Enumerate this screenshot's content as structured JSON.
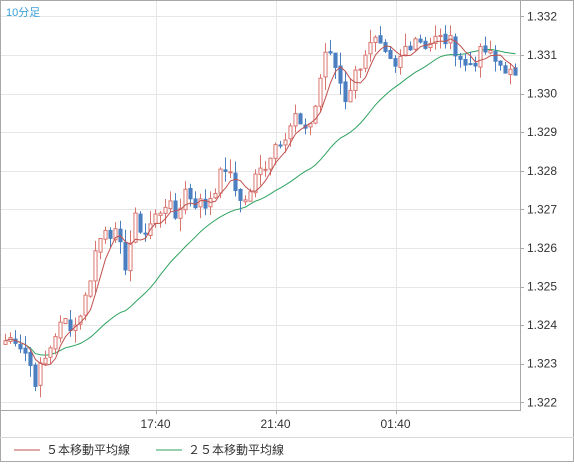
{
  "timeframe_label": "10分足",
  "legend": [
    {
      "label": "５本移動平均線",
      "color": "#c0504d"
    },
    {
      "label": "２５本移動平均線",
      "color": "#2ca25f"
    }
  ],
  "colors": {
    "up_candle": "#d9756e",
    "down_candle": "#4a7fc1",
    "ma5": "#c0504d",
    "ma25": "#2ca25f",
    "grid": "#e6e6e6",
    "frame": "#a8a8a8",
    "timeframe_text": "#3aa0d8"
  },
  "chart_data": {
    "type": "candlestick",
    "title": "",
    "xlabel": "",
    "ylabel": "",
    "ylim": [
      1.3218,
      1.3324
    ],
    "y_ticks": [
      "1.332",
      "1.331",
      "1.330",
      "1.329",
      "1.328",
      "1.327",
      "1.326",
      "1.325",
      "1.324",
      "1.323",
      "1.322"
    ],
    "y_tick_values": [
      1.332,
      1.331,
      1.33,
      1.329,
      1.328,
      1.327,
      1.326,
      1.325,
      1.324,
      1.323,
      1.322
    ],
    "x_ticks": [
      {
        "label": "17:40",
        "bar_index": 30
      },
      {
        "label": "21:40",
        "bar_index": 54
      },
      {
        "label": "01:40",
        "bar_index": 78
      }
    ],
    "bar_count": 103,
    "start_anchor": [
      1.3235,
      1.3235
    ],
    "anchors": [
      [
        0,
        1.3236
      ],
      [
        2,
        1.3237
      ],
      [
        4,
        1.3233
      ],
      [
        6,
        1.3226
      ],
      [
        8,
        1.3231
      ],
      [
        10,
        1.3238
      ],
      [
        12,
        1.3241
      ],
      [
        14,
        1.324
      ],
      [
        16,
        1.3247
      ],
      [
        18,
        1.3259
      ],
      [
        20,
        1.3266
      ],
      [
        22,
        1.3263
      ],
      [
        24,
        1.3256
      ],
      [
        26,
        1.3267
      ],
      [
        28,
        1.3264
      ],
      [
        30,
        1.3268
      ],
      [
        32,
        1.3272
      ],
      [
        34,
        1.3268
      ],
      [
        36,
        1.3275
      ],
      [
        38,
        1.3272
      ],
      [
        40,
        1.3271
      ],
      [
        42,
        1.3276
      ],
      [
        44,
        1.3281
      ],
      [
        46,
        1.3275
      ],
      [
        48,
        1.3272
      ],
      [
        50,
        1.3278
      ],
      [
        52,
        1.3282
      ],
      [
        54,
        1.3287
      ],
      [
        56,
        1.329
      ],
      [
        58,
        1.3294
      ],
      [
        60,
        1.3289
      ],
      [
        62,
        1.3297
      ],
      [
        64,
        1.3311
      ],
      [
        66,
        1.3307
      ],
      [
        68,
        1.3299
      ],
      [
        70,
        1.3305
      ],
      [
        72,
        1.3311
      ],
      [
        74,
        1.3313
      ],
      [
        76,
        1.3309
      ],
      [
        78,
        1.3306
      ],
      [
        80,
        1.3312
      ],
      [
        82,
        1.3315
      ],
      [
        84,
        1.3313
      ],
      [
        86,
        1.3314
      ],
      [
        88,
        1.3314
      ],
      [
        90,
        1.3312
      ],
      [
        92,
        1.3307
      ],
      [
        94,
        1.3309
      ],
      [
        96,
        1.3311
      ],
      [
        98,
        1.3308
      ],
      [
        100,
        1.3307
      ],
      [
        102,
        1.3303
      ]
    ]
  }
}
